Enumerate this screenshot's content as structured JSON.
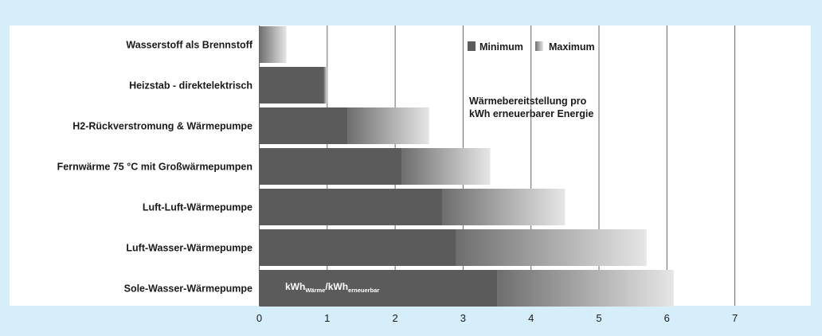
{
  "chart_data": {
    "type": "bar",
    "orientation": "horizontal",
    "categories": [
      "Wasserstoff als Brennstoff",
      "Heizstab - direktelektrisch",
      "H2-Rückverstromung & Wärmepumpe",
      "Fernwärme 75 °C mit Großwärmepumpen",
      "Luft-Luft-Wärmepumpe",
      "Luft-Wasser-Wärmepumpe",
      "Sole-Wasser-Wärmepumpe"
    ],
    "series": [
      {
        "name": "Minimum",
        "values": [
          0.0,
          0.95,
          1.3,
          2.1,
          2.7,
          2.9,
          3.5
        ]
      },
      {
        "name": "Maximum",
        "values": [
          0.4,
          1.0,
          2.5,
          3.4,
          4.5,
          5.7,
          6.1
        ]
      }
    ],
    "xlim": [
      0,
      7
    ],
    "xticks": [
      "0",
      "1",
      "2",
      "3",
      "4",
      "5",
      "6",
      "7"
    ],
    "grid": true,
    "legend_position": "top-right",
    "annotation": [
      "Wärmebereitstellung pro",
      "kWh erneuerbarer Energie"
    ],
    "unit": {
      "main1": "kWh",
      "sub1": "Wärme",
      "sep": "/",
      "main2": "kWh",
      "sub2": "erneuerbar"
    },
    "colors": {
      "background": "#d6eef9",
      "plot_background": "#ffffff",
      "minimum_bar": "#5b5b5b",
      "maximum_start": "#6e6e6e",
      "maximum_end": "#e6e6e6",
      "grid": "#666666"
    }
  }
}
